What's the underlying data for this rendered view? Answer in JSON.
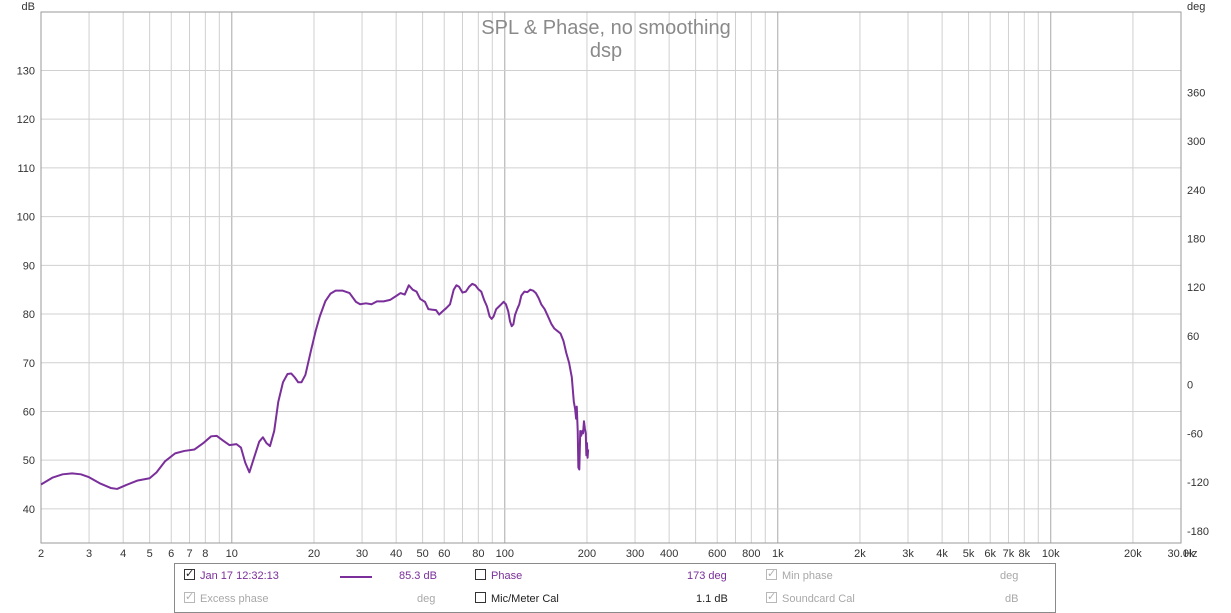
{
  "chart_data": {
    "type": "line",
    "title": "SPL & Phase, no smoothing",
    "subtitle": "dsp",
    "xscale": "log",
    "xlim": [
      2,
      30000
    ],
    "ylim_left": [
      33,
      142
    ],
    "ylim_right": [
      -195,
      459
    ],
    "left_unit": "dB",
    "right_unit": "deg",
    "x_unit": "Hz",
    "grid": true,
    "left_ticks": [
      40,
      50,
      60,
      70,
      80,
      90,
      100,
      110,
      120,
      130
    ],
    "right_ticks": [
      -180,
      -120,
      -60,
      0,
      60,
      120,
      180,
      240,
      300,
      360
    ],
    "x_ticks": [
      {
        "v": 2,
        "label": "2"
      },
      {
        "v": 3,
        "label": "3"
      },
      {
        "v": 4,
        "label": "4"
      },
      {
        "v": 5,
        "label": "5"
      },
      {
        "v": 6,
        "label": "6"
      },
      {
        "v": 7,
        "label": "7"
      },
      {
        "v": 8,
        "label": "8"
      },
      {
        "v": 10,
        "label": "10"
      },
      {
        "v": 20,
        "label": "20"
      },
      {
        "v": 30,
        "label": "30"
      },
      {
        "v": 40,
        "label": "40"
      },
      {
        "v": 50,
        "label": "50"
      },
      {
        "v": 60,
        "label": "60"
      },
      {
        "v": 80,
        "label": "80"
      },
      {
        "v": 100,
        "label": "100"
      },
      {
        "v": 200,
        "label": "200"
      },
      {
        "v": 300,
        "label": "300"
      },
      {
        "v": 400,
        "label": "400"
      },
      {
        "v": 600,
        "label": "600"
      },
      {
        "v": 800,
        "label": "800"
      },
      {
        "v": 1000,
        "label": "1k"
      },
      {
        "v": 2000,
        "label": "2k"
      },
      {
        "v": 3000,
        "label": "3k"
      },
      {
        "v": 4000,
        "label": "4k"
      },
      {
        "v": 5000,
        "label": "5k"
      },
      {
        "v": 6000,
        "label": "6k"
      },
      {
        "v": 7000,
        "label": "7k"
      },
      {
        "v": 8000,
        "label": "8k"
      },
      {
        "v": 10000,
        "label": "10k"
      },
      {
        "v": 20000,
        "label": "20k"
      },
      {
        "v": 30000,
        "label": "30.0k"
      }
    ],
    "series": [
      {
        "name": "Jan 17 12:32:13",
        "color": "#7a2f9a",
        "points": [
          [
            2,
            45.0
          ],
          [
            2.2,
            46.4
          ],
          [
            2.4,
            47.1
          ],
          [
            2.6,
            47.3
          ],
          [
            2.8,
            47.1
          ],
          [
            3.0,
            46.5
          ],
          [
            3.3,
            45.2
          ],
          [
            3.6,
            44.3
          ],
          [
            3.8,
            44.1
          ],
          [
            4.1,
            44.9
          ],
          [
            4.5,
            45.8
          ],
          [
            5.0,
            46.3
          ],
          [
            5.3,
            47.5
          ],
          [
            5.7,
            49.8
          ],
          [
            6.2,
            51.4
          ],
          [
            6.7,
            51.9
          ],
          [
            7.3,
            52.2
          ],
          [
            7.9,
            53.6
          ],
          [
            8.4,
            54.9
          ],
          [
            8.8,
            55.0
          ],
          [
            9.3,
            54.0
          ],
          [
            9.8,
            53.1
          ],
          [
            10.4,
            53.3
          ],
          [
            10.8,
            52.6
          ],
          [
            11.2,
            49.5
          ],
          [
            11.6,
            47.5
          ],
          [
            12.0,
            50.1
          ],
          [
            12.6,
            53.8
          ],
          [
            13.0,
            54.7
          ],
          [
            13.4,
            53.5
          ],
          [
            13.8,
            52.9
          ],
          [
            14.3,
            56.0
          ],
          [
            14.8,
            62.0
          ],
          [
            15.4,
            66.0
          ],
          [
            16.0,
            67.7
          ],
          [
            16.5,
            67.8
          ],
          [
            17.0,
            67.0
          ],
          [
            17.5,
            66.0
          ],
          [
            18.0,
            66.0
          ],
          [
            18.6,
            67.5
          ],
          [
            19.5,
            72.5
          ],
          [
            20.3,
            76.6
          ],
          [
            21.0,
            79.5
          ],
          [
            22.0,
            82.6
          ],
          [
            23.0,
            84.2
          ],
          [
            24.0,
            84.8
          ],
          [
            25.5,
            84.8
          ],
          [
            27.0,
            84.3
          ],
          [
            28.5,
            82.5
          ],
          [
            29.5,
            82.0
          ],
          [
            31.0,
            82.2
          ],
          [
            32.5,
            82.0
          ],
          [
            34.0,
            82.6
          ],
          [
            36.0,
            82.6
          ],
          [
            38.0,
            82.9
          ],
          [
            40.0,
            83.7
          ],
          [
            41.5,
            84.3
          ],
          [
            43.0,
            84.0
          ],
          [
            44.5,
            85.9
          ],
          [
            46.0,
            85.0
          ],
          [
            47.5,
            84.6
          ],
          [
            49.0,
            83.1
          ],
          [
            51.0,
            82.5
          ],
          [
            52.5,
            81.0
          ],
          [
            54.0,
            80.9
          ],
          [
            56.0,
            80.8
          ],
          [
            57.5,
            79.9
          ],
          [
            59.0,
            80.5
          ],
          [
            61.0,
            81.2
          ],
          [
            63.0,
            82.0
          ],
          [
            65.0,
            85.0
          ],
          [
            66.5,
            85.9
          ],
          [
            68.0,
            85.6
          ],
          [
            70.0,
            84.4
          ],
          [
            72.0,
            84.6
          ],
          [
            74.0,
            85.6
          ],
          [
            76.0,
            86.2
          ],
          [
            78.0,
            85.9
          ],
          [
            80.0,
            85.1
          ],
          [
            82.0,
            84.6
          ],
          [
            84.0,
            82.9
          ],
          [
            86.0,
            81.6
          ],
          [
            88.0,
            79.5
          ],
          [
            89.5,
            79.0
          ],
          [
            91.0,
            79.5
          ],
          [
            93.0,
            81.0
          ],
          [
            95.0,
            81.5
          ],
          [
            97.0,
            82.0
          ],
          [
            99.0,
            82.5
          ],
          [
            101.0,
            82.0
          ],
          [
            103.0,
            80.5
          ],
          [
            104.5,
            78.5
          ],
          [
            106.0,
            77.5
          ],
          [
            107.5,
            77.9
          ],
          [
            109.0,
            79.8
          ],
          [
            111.0,
            81.0
          ],
          [
            113.0,
            82.0
          ],
          [
            115.0,
            83.8
          ],
          [
            118.0,
            84.6
          ],
          [
            121.0,
            84.5
          ],
          [
            124.0,
            85.0
          ],
          [
            127.0,
            84.8
          ],
          [
            130.0,
            84.3
          ],
          [
            133.0,
            83.3
          ],
          [
            136.0,
            82.0
          ],
          [
            140.0,
            81.0
          ],
          [
            144.0,
            79.5
          ],
          [
            148.0,
            78.0
          ],
          [
            152.0,
            77.0
          ],
          [
            156.0,
            76.5
          ],
          [
            160.0,
            76.0
          ],
          [
            164.0,
            74.5
          ],
          [
            168.0,
            72.0
          ],
          [
            172.0,
            70.0
          ],
          [
            176.0,
            67.0
          ],
          [
            179.0,
            62.0
          ],
          [
            181.0,
            60.5
          ],
          [
            182.5,
            58.5
          ],
          [
            183.5,
            61.0
          ],
          [
            185.0,
            56.0
          ],
          [
            186.0,
            48.5
          ],
          [
            187.5,
            48.1
          ],
          [
            189.0,
            56.0
          ],
          [
            190.5,
            55.0
          ],
          [
            192.0,
            56.0
          ],
          [
            193.5,
            55.5
          ],
          [
            195.0,
            58.0
          ],
          [
            196.5,
            56.5
          ],
          [
            198.0,
            55.5
          ],
          [
            199.0,
            51.0
          ],
          [
            200.0,
            53.5
          ],
          [
            201.0,
            50.5
          ],
          [
            202.0,
            52.2
          ]
        ]
      }
    ]
  },
  "legend": {
    "row1": {
      "series_label": "Jan 17 12:32:13",
      "series_value": "85.3 dB",
      "phase_label": "Phase",
      "phase_value": "173 deg",
      "min_phase_label": "Min phase",
      "min_phase_unit": "deg"
    },
    "row2": {
      "excess_label": "Excess phase",
      "excess_unit": "deg",
      "mic_label": "Mic/Meter Cal",
      "mic_value": "1.1 dB",
      "soundcard_label": "Soundcard Cal",
      "soundcard_unit": "dB"
    }
  }
}
